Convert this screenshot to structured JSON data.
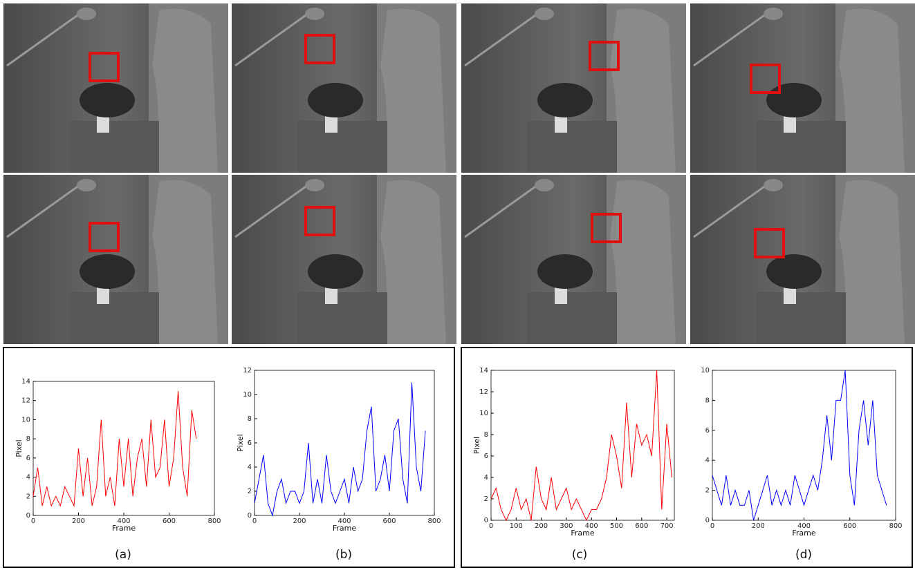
{
  "chart_data": [
    {
      "type": "line",
      "label": "(a)",
      "x_label": "Frame",
      "y_label": "Pixel",
      "x": [
        0,
        20,
        40,
        60,
        80,
        100,
        120,
        140,
        160,
        180,
        200,
        220,
        240,
        260,
        280,
        300,
        320,
        340,
        360,
        380,
        400,
        420,
        440,
        460,
        480,
        500,
        520,
        540,
        560,
        580,
        600,
        620,
        640,
        660,
        680,
        700,
        720
      ],
      "series": [
        {
          "color": "#ff0000",
          "values": [
            2,
            5,
            1,
            3,
            1,
            2,
            1,
            3,
            2,
            1,
            7,
            2,
            6,
            1,
            3,
            10,
            2,
            4,
            1,
            8,
            3,
            8,
            2,
            6,
            8,
            3,
            10,
            4,
            5,
            10,
            3,
            6,
            13,
            5,
            2,
            11,
            8
          ]
        }
      ],
      "xlim": [
        0,
        800
      ],
      "xticks": [
        0,
        200,
        400,
        600,
        800
      ],
      "ylim": [
        0,
        14
      ],
      "yticks": [
        0,
        2,
        4,
        6,
        8,
        10,
        12,
        14
      ]
    },
    {
      "type": "line",
      "label": "(b)",
      "x_label": "Frame",
      "y_label": "Pixel",
      "x": [
        0,
        20,
        40,
        60,
        80,
        100,
        120,
        140,
        160,
        180,
        200,
        220,
        240,
        260,
        280,
        300,
        320,
        340,
        360,
        380,
        400,
        420,
        440,
        460,
        480,
        500,
        520,
        540,
        560,
        580,
        600,
        620,
        640,
        660,
        680,
        700,
        720,
        740,
        760
      ],
      "series": [
        {
          "color": "#0000ff",
          "values": [
            1,
            3,
            5,
            1,
            0,
            2,
            3,
            1,
            2,
            2,
            1,
            2,
            6,
            1,
            3,
            1,
            5,
            2,
            1,
            2,
            3,
            1,
            4,
            2,
            3,
            7,
            9,
            2,
            3,
            5,
            2,
            7,
            8,
            3,
            1,
            11,
            4,
            2,
            7
          ]
        }
      ],
      "xlim": [
        0,
        800
      ],
      "xticks": [
        0,
        200,
        400,
        600,
        800
      ],
      "ylim": [
        0,
        12
      ],
      "yticks": [
        0,
        2,
        4,
        6,
        8,
        10,
        12
      ]
    },
    {
      "type": "line",
      "label": "(c)",
      "x_label": "Frame",
      "y_label": "Pixel",
      "x": [
        0,
        20,
        40,
        60,
        80,
        100,
        120,
        140,
        160,
        180,
        200,
        220,
        240,
        260,
        280,
        300,
        320,
        340,
        360,
        380,
        400,
        420,
        440,
        460,
        480,
        500,
        520,
        540,
        560,
        580,
        600,
        620,
        640,
        660,
        680,
        700,
        720
      ],
      "series": [
        {
          "color": "#ff0000",
          "values": [
            2,
            3,
            1,
            0,
            1,
            3,
            1,
            2,
            0,
            5,
            2,
            1,
            4,
            1,
            2,
            3,
            1,
            2,
            1,
            0,
            1,
            1,
            2,
            4,
            8,
            6,
            3,
            11,
            4,
            9,
            7,
            8,
            6,
            14,
            1,
            9,
            4
          ]
        }
      ],
      "xlim": [
        0,
        730
      ],
      "xticks": [
        0,
        100,
        200,
        300,
        400,
        500,
        600,
        700
      ],
      "ylim": [
        0,
        14
      ],
      "yticks": [
        0,
        2,
        4,
        6,
        8,
        10,
        12,
        14
      ]
    },
    {
      "type": "line",
      "label": "(d)",
      "x_label": "Frame",
      "x": [
        0,
        20,
        40,
        60,
        80,
        100,
        120,
        140,
        160,
        180,
        200,
        220,
        240,
        260,
        280,
        300,
        320,
        340,
        360,
        380,
        400,
        420,
        440,
        460,
        480,
        500,
        520,
        540,
        560,
        580,
        600,
        620,
        640,
        660,
        680,
        700,
        720,
        740,
        760
      ],
      "series": [
        {
          "color": "#0000ff",
          "values": [
            3,
            2,
            1,
            3,
            1,
            2,
            1,
            1,
            2,
            0,
            1,
            2,
            3,
            1,
            2,
            1,
            2,
            1,
            3,
            2,
            1,
            2,
            3,
            2,
            4,
            7,
            4,
            8,
            8,
            10,
            3,
            1,
            6,
            8,
            5,
            8,
            3,
            2,
            1
          ]
        }
      ],
      "xlim": [
        0,
        800
      ],
      "xticks": [
        0,
        200,
        400,
        600,
        800
      ],
      "ylim": [
        0,
        10
      ],
      "yticks": [
        0,
        2,
        4,
        6,
        8,
        10
      ]
    }
  ]
}
